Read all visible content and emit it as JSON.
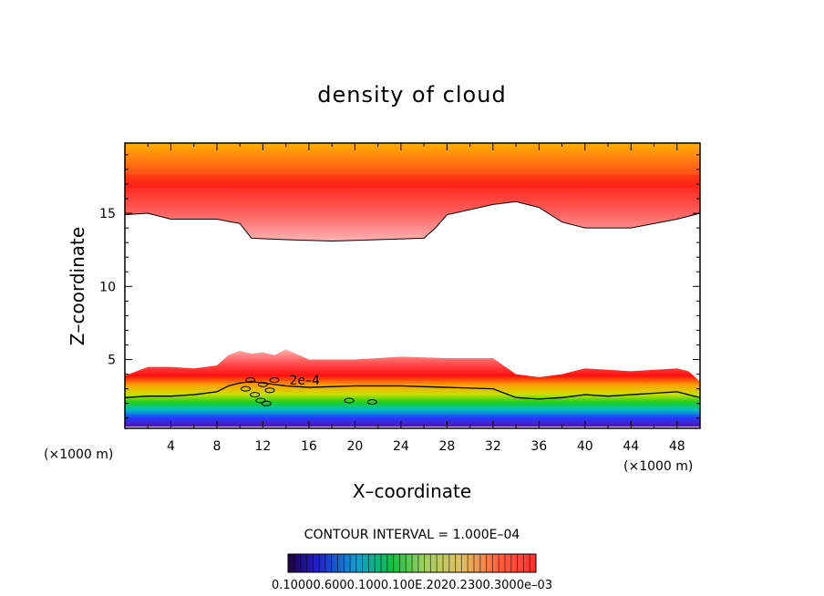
{
  "chart_data": {
    "type": "contour",
    "title": "density of cloud",
    "xlabel": "X–coordinate",
    "ylabel": "Z–coordinate",
    "x_unit_left": "(×1000 m)",
    "x_unit_right": "(×1000 m)",
    "xlim": [
      0,
      50
    ],
    "ylim": [
      0.3,
      19.8
    ],
    "x_ticks": [
      4,
      8,
      12,
      16,
      20,
      24,
      28,
      32,
      36,
      40,
      44,
      48
    ],
    "y_ticks": [
      5,
      10,
      15
    ],
    "contour_interval_text": "CONTOUR INTERVAL = 1.000E–04",
    "contour_label": "2e–4",
    "colorbar_labels_text": "0.10000.6000.1000.100E.2020.2300.3000e–03",
    "colors": {
      "low": "#3b00a0",
      "mid": "#22d000",
      "high": "#ff2020",
      "top": "#ffb000"
    },
    "upper_layer": {
      "x": [
        0,
        2,
        4,
        8,
        10,
        11,
        14,
        18,
        22,
        26,
        27,
        28,
        32,
        34,
        36,
        38,
        40,
        44,
        48,
        50
      ],
      "base_z": [
        14.9,
        15.0,
        14.6,
        14.6,
        14.3,
        13.3,
        13.2,
        13.1,
        13.2,
        13.3,
        14.0,
        14.9,
        15.6,
        15.8,
        15.4,
        14.4,
        14.0,
        14.0,
        14.6,
        15.0
      ],
      "top_z": 19.8,
      "core_z": 17.2
    },
    "lower_layer": {
      "x": [
        0,
        2,
        4,
        6,
        8,
        9,
        10,
        11,
        12,
        13,
        14,
        16,
        20,
        24,
        28,
        32,
        34,
        36,
        38,
        40,
        42,
        44,
        46,
        48,
        49,
        50
      ],
      "top_z": [
        3.9,
        4.5,
        4.5,
        4.4,
        4.6,
        5.3,
        5.6,
        5.4,
        5.5,
        5.3,
        5.7,
        5.0,
        5.0,
        5.2,
        5.1,
        5.1,
        4.0,
        3.8,
        4.0,
        4.4,
        4.3,
        4.2,
        4.3,
        4.4,
        4.2,
        3.5
      ],
      "contour_2e4_z": [
        2.4,
        2.5,
        2.5,
        2.6,
        2.8,
        3.2,
        3.4,
        3.5,
        3.4,
        3.3,
        3.2,
        3.1,
        3.2,
        3.2,
        3.1,
        3.0,
        2.4,
        2.3,
        2.4,
        2.6,
        2.5,
        2.6,
        2.7,
        2.8,
        2.6,
        2.4
      ],
      "base_z": 0.4
    }
  }
}
